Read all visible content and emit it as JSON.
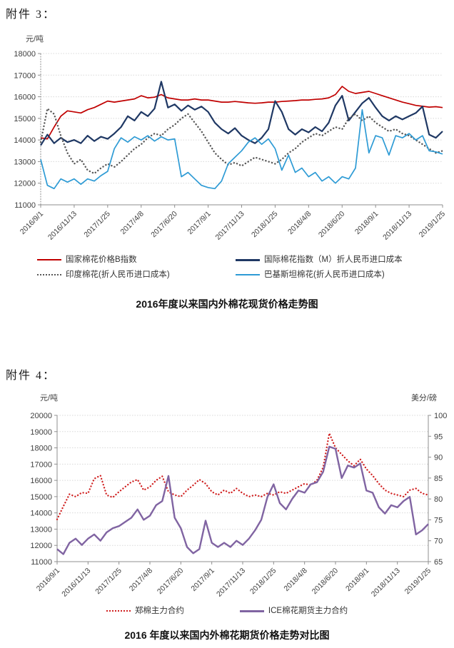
{
  "page": {
    "attachment3_label": "附件 3：",
    "attachment4_label": "附件 4："
  },
  "chart_data": [
    {
      "type": "line",
      "title": "2016年度以来国内外棉花现货价格走势图",
      "ylabel": "元/吨",
      "ylim": [
        11000,
        18000
      ],
      "yticks": [
        18000,
        17000,
        16000,
        15000,
        14000,
        13000,
        12000,
        11000
      ],
      "grid": true,
      "legend_position": "bottom",
      "x_ticks": [
        "2016/9/1",
        "2016/11/13",
        "2017/1/25",
        "2017/4/8",
        "2017/6/20",
        "2017/9/1",
        "2017/11/13",
        "2018/1/25",
        "2018/4/8",
        "2018/6/20",
        "2018/9/1",
        "2018/11/13",
        "2019/1/25"
      ],
      "series": [
        {
          "name": "国家棉花价格B指数",
          "color": "#C00000",
          "style": "solid",
          "width": 1.7,
          "values": [
            14100,
            14050,
            14600,
            15100,
            15350,
            15300,
            15250,
            15400,
            15500,
            15650,
            15800,
            15750,
            15800,
            15850,
            15900,
            16050,
            15950,
            15980,
            16100,
            15950,
            15900,
            15850,
            15850,
            15900,
            15850,
            15850,
            15800,
            15750,
            15750,
            15780,
            15750,
            15720,
            15700,
            15720,
            15750,
            15750,
            15780,
            15800,
            15820,
            15850,
            15850,
            15880,
            15900,
            15950,
            16100,
            16480,
            16250,
            16150,
            16200,
            16250,
            16150,
            16050,
            15950,
            15850,
            15750,
            15680,
            15600,
            15560,
            15520,
            15540,
            15500
          ]
        },
        {
          "name": "国际棉花指数（M）折人民币进口成本",
          "color": "#1F3864",
          "style": "solid",
          "width": 2.2,
          "values": [
            13750,
            14250,
            13850,
            14100,
            13900,
            14000,
            13850,
            14200,
            13950,
            14150,
            14050,
            14300,
            14600,
            15100,
            14900,
            15300,
            15100,
            15450,
            16700,
            15500,
            15650,
            15350,
            15600,
            15400,
            15550,
            15300,
            14800,
            14500,
            14300,
            14550,
            14200,
            14000,
            13850,
            14100,
            14500,
            15800,
            15300,
            14500,
            14250,
            14500,
            14350,
            14600,
            14400,
            14800,
            15600,
            16050,
            14900,
            15300,
            15700,
            15950,
            15500,
            15100,
            14900,
            15100,
            14950,
            15100,
            15250,
            15550,
            14250,
            14100,
            14400
          ]
        },
        {
          "name": "印度棉花(折人民币进口成本)",
          "color": "#595959",
          "style": "dotted",
          "width": 2.4,
          "values": [
            13900,
            15450,
            15200,
            14200,
            13400,
            12900,
            13100,
            12600,
            12450,
            12700,
            12900,
            12750,
            13000,
            13300,
            13600,
            13800,
            14100,
            14300,
            14200,
            14500,
            14700,
            15000,
            15200,
            14800,
            14400,
            13900,
            13400,
            13100,
            12850,
            12950,
            12800,
            13000,
            13200,
            13100,
            13000,
            12900,
            13100,
            13400,
            13600,
            13900,
            14100,
            14300,
            14200,
            14400,
            14600,
            14500,
            15000,
            15200,
            14900,
            15100,
            14800,
            14600,
            14400,
            14500,
            14300,
            14200,
            14000,
            13800,
            13600,
            13400,
            13500
          ]
        },
        {
          "name": "巴基斯坦棉花(折人民币进口成本)",
          "color": "#2E9BD5",
          "style": "solid",
          "width": 1.7,
          "values": [
            13100,
            11900,
            11750,
            12200,
            12050,
            12200,
            11950,
            12200,
            12100,
            12350,
            12550,
            13600,
            14100,
            13900,
            14150,
            14000,
            14200,
            13950,
            14150,
            14000,
            14050,
            12300,
            12500,
            12200,
            11900,
            11800,
            11750,
            12100,
            12900,
            13200,
            13500,
            13900,
            14100,
            13800,
            14050,
            13600,
            12600,
            13300,
            12500,
            12700,
            12300,
            12500,
            12100,
            12300,
            12000,
            12300,
            12200,
            12700,
            15400,
            13400,
            14200,
            14100,
            13300,
            14200,
            14100,
            14300,
            14000,
            14200,
            13500,
            13450,
            13350
          ]
        }
      ]
    },
    {
      "type": "line",
      "title": "2016 年度以来国内外棉花期货价格走势对比图",
      "ylabel_left": "元/吨",
      "ylabel_right": "美分/磅",
      "ylim_left": [
        11000,
        20000
      ],
      "ylim_right": [
        65,
        100
      ],
      "yticks_left": [
        20000,
        19000,
        18000,
        17000,
        16000,
        15000,
        14000,
        13000,
        12000,
        11000
      ],
      "yticks_right": [
        100,
        95,
        90,
        85,
        80,
        75,
        70,
        65
      ],
      "grid": true,
      "legend_position": "bottom",
      "x_ticks": [
        "2016/9/1",
        "2016/11/13",
        "2017/1/25",
        "2017/4/8",
        "2017/6/20",
        "2017/9/1",
        "2017/11/13",
        "2018/1/25",
        "2018/4/8",
        "2018/6/20",
        "2018/9/1",
        "2018/11/13",
        "2019/1/25"
      ],
      "series": [
        {
          "name": "郑棉主力合约",
          "axis": "left",
          "color": "#D02020",
          "style": "dotted",
          "width": 2.3,
          "values": [
            13600,
            14400,
            15150,
            15000,
            15250,
            15200,
            16100,
            16300,
            15100,
            14950,
            15300,
            15600,
            15900,
            16050,
            15400,
            15600,
            16000,
            16250,
            15300,
            15100,
            15000,
            15400,
            15700,
            16050,
            15800,
            15300,
            15100,
            15400,
            15200,
            15500,
            15200,
            15000,
            15100,
            15000,
            15200,
            15100,
            15300,
            15200,
            15400,
            15600,
            15800,
            15700,
            16000,
            16800,
            18900,
            18000,
            17600,
            17200,
            16900,
            17300,
            16700,
            16300,
            15800,
            15400,
            15200,
            15100,
            15000,
            15400,
            15500,
            15200,
            15100
          ]
        },
        {
          "name": "ICE棉花期货主力合约",
          "axis": "right",
          "color": "#8064A2",
          "style": "solid",
          "width": 2.4,
          "values": [
            68.0,
            66.8,
            69.5,
            70.5,
            69.0,
            70.5,
            71.5,
            70.0,
            72.0,
            73.0,
            73.5,
            74.5,
            75.5,
            77.5,
            75.0,
            76.0,
            78.5,
            79.5,
            85.5,
            75.5,
            73.0,
            68.5,
            67.0,
            68.0,
            74.8,
            69.5,
            68.5,
            69.5,
            68.5,
            70.0,
            69.0,
            70.5,
            72.5,
            75.0,
            80.5,
            83.5,
            79.0,
            77.5,
            80.0,
            82.0,
            81.5,
            83.5,
            84.0,
            86.5,
            92.5,
            92.0,
            85.0,
            88.0,
            87.5,
            88.5,
            82.0,
            81.5,
            78.0,
            76.5,
            78.5,
            78.0,
            79.5,
            80.5,
            71.5,
            72.5,
            74.0
          ]
        }
      ]
    }
  ]
}
